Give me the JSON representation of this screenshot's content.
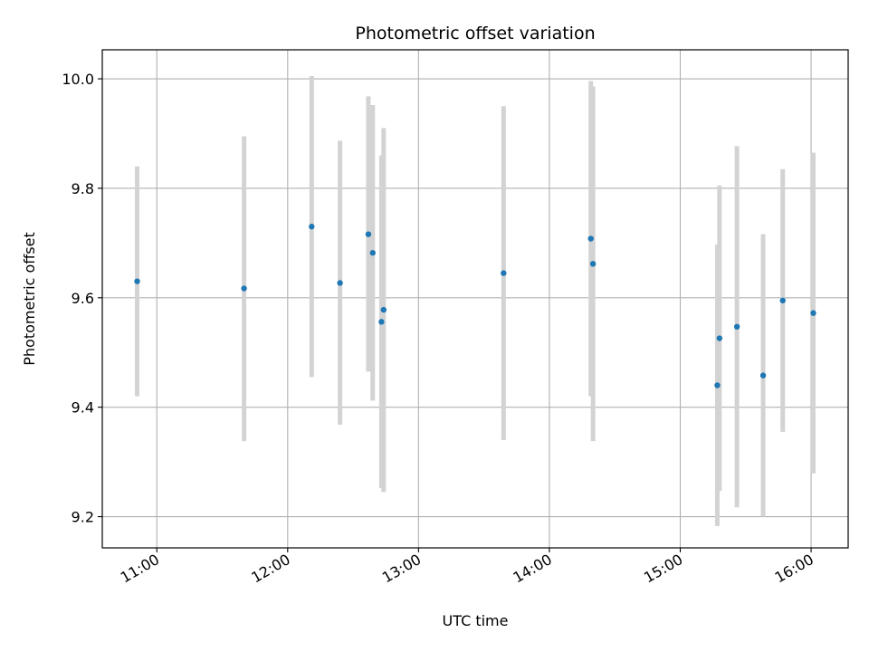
{
  "chart_data": {
    "type": "scatter",
    "title": "Photometric offset variation",
    "xlabel": "UTC time",
    "ylabel": "Photometric offset",
    "x_unit": "UTC time (HH:MM)",
    "xlim": [
      "10:35",
      "16:17"
    ],
    "ylim": [
      9.143,
      10.053
    ],
    "x_ticks": [
      "11:00",
      "12:00",
      "13:00",
      "14:00",
      "15:00",
      "16:00"
    ],
    "y_ticks": [
      9.2,
      9.4,
      9.6,
      9.8,
      10.0
    ],
    "y_tick_labels": [
      "9.2",
      "9.4",
      "9.6",
      "9.8",
      "10.0"
    ],
    "grid": true,
    "point_color": "#1f77b4",
    "errorbar_color": "#d3d3d3",
    "points": [
      {
        "t": "10:51",
        "y": 9.63,
        "lo": 9.42,
        "hi": 9.84
      },
      {
        "t": "11:40",
        "y": 9.617,
        "lo": 9.338,
        "hi": 9.895
      },
      {
        "t": "12:11",
        "y": 9.73,
        "lo": 9.455,
        "hi": 10.005
      },
      {
        "t": "12:24",
        "y": 9.627,
        "lo": 9.368,
        "hi": 9.887
      },
      {
        "t": "12:37",
        "y": 9.716,
        "lo": 9.465,
        "hi": 9.968
      },
      {
        "t": "12:39",
        "y": 9.682,
        "lo": 9.412,
        "hi": 9.952
      },
      {
        "t": "12:43",
        "y": 9.556,
        "lo": 9.252,
        "hi": 9.86
      },
      {
        "t": "12:44",
        "y": 9.578,
        "lo": 9.245,
        "hi": 9.91
      },
      {
        "t": "13:39",
        "y": 9.645,
        "lo": 9.34,
        "hi": 9.95
      },
      {
        "t": "14:19",
        "y": 9.708,
        "lo": 9.42,
        "hi": 9.996
      },
      {
        "t": "14:20",
        "y": 9.662,
        "lo": 9.338,
        "hi": 9.986
      },
      {
        "t": "15:17",
        "y": 9.44,
        "lo": 9.183,
        "hi": 9.697
      },
      {
        "t": "15:18",
        "y": 9.526,
        "lo": 9.247,
        "hi": 9.805
      },
      {
        "t": "15:26",
        "y": 9.547,
        "lo": 9.217,
        "hi": 9.877
      },
      {
        "t": "15:38",
        "y": 9.458,
        "lo": 9.2,
        "hi": 9.716
      },
      {
        "t": "15:47",
        "y": 9.595,
        "lo": 9.355,
        "hi": 9.835
      },
      {
        "t": "16:01",
        "y": 9.572,
        "lo": 9.279,
        "hi": 9.865
      }
    ]
  }
}
